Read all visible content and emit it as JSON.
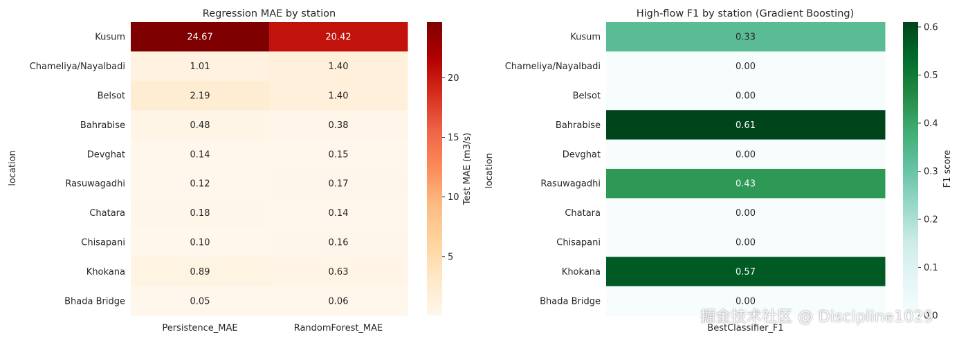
{
  "watermark": "掘金技术社区 @ Discipline1029",
  "chart_data": [
    {
      "type": "heatmap",
      "title": "Regression MAE by station",
      "ylabel": "location",
      "rows": [
        "Kusum",
        "Chameliya/Nayalbadi",
        "Belsot",
        "Bahrabise",
        "Devghat",
        "Rasuwagadhi",
        "Chatara",
        "Chisapani",
        "Khokana",
        "Bhada Bridge"
      ],
      "columns": [
        "Persistence_MAE",
        "RandomForest_MAE"
      ],
      "values": [
        [
          24.67,
          20.42
        ],
        [
          1.01,
          1.4
        ],
        [
          2.19,
          1.4
        ],
        [
          0.48,
          0.38
        ],
        [
          0.14,
          0.15
        ],
        [
          0.12,
          0.17
        ],
        [
          0.18,
          0.14
        ],
        [
          0.1,
          0.16
        ],
        [
          0.89,
          0.63
        ],
        [
          0.05,
          0.06
        ]
      ],
      "value_labels": [
        [
          "24.67",
          "20.42"
        ],
        [
          "1.01",
          "1.40"
        ],
        [
          "2.19",
          "1.40"
        ],
        [
          "0.48",
          "0.38"
        ],
        [
          "0.14",
          "0.15"
        ],
        [
          "0.12",
          "0.17"
        ],
        [
          "0.18",
          "0.14"
        ],
        [
          "0.10",
          "0.16"
        ],
        [
          "0.89",
          "0.63"
        ],
        [
          "0.05",
          "0.06"
        ]
      ],
      "colormap": "OrRd",
      "colorbar": {
        "label": "Test MAE (m3/s)",
        "range": [
          0.05,
          24.67
        ],
        "ticks": [
          5,
          10,
          15,
          20
        ],
        "tick_labels": [
          "5",
          "10",
          "15",
          "20"
        ]
      }
    },
    {
      "type": "heatmap",
      "title": "High-flow F1 by station (Gradient Boosting)",
      "ylabel": "location",
      "rows": [
        "Kusum",
        "Chameliya/Nayalbadi",
        "Belsot",
        "Bahrabise",
        "Devghat",
        "Rasuwagadhi",
        "Chatara",
        "Chisapani",
        "Khokana",
        "Bhada Bridge"
      ],
      "columns": [
        "BestClassifier_F1"
      ],
      "values": [
        [
          0.33
        ],
        [
          0.0
        ],
        [
          0.0
        ],
        [
          0.61
        ],
        [
          0.0
        ],
        [
          0.43
        ],
        [
          0.0
        ],
        [
          0.0
        ],
        [
          0.57
        ],
        [
          0.0
        ]
      ],
      "value_labels": [
        [
          "0.33"
        ],
        [
          "0.00"
        ],
        [
          "0.00"
        ],
        [
          "0.61"
        ],
        [
          "0.00"
        ],
        [
          "0.43"
        ],
        [
          "0.00"
        ],
        [
          "0.00"
        ],
        [
          "0.57"
        ],
        [
          "0.00"
        ]
      ],
      "colormap": "Greens",
      "colorbar": {
        "label": "F1 score",
        "range": [
          0.0,
          0.61
        ],
        "ticks": [
          0.0,
          0.1,
          0.2,
          0.3,
          0.4,
          0.5,
          0.6
        ],
        "tick_labels": [
          "0.0",
          "0.1",
          "0.2",
          "0.3",
          "0.4",
          "0.5",
          "0.6"
        ]
      }
    }
  ]
}
